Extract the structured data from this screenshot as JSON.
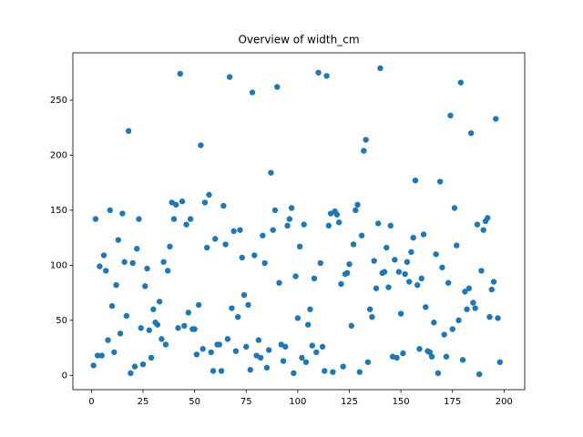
{
  "chart_data": {
    "type": "scatter",
    "title": "Overview of width_cm",
    "color": "#1f77b4",
    "xlim": [
      -9,
      210
    ],
    "ylim": [
      -13,
      293
    ],
    "xticks": [
      0,
      25,
      50,
      75,
      100,
      125,
      150,
      175,
      200
    ],
    "yticks": [
      0,
      50,
      100,
      150,
      200,
      250
    ],
    "x": [
      1,
      2,
      3,
      4,
      5,
      6,
      7,
      8,
      9,
      10,
      11,
      12,
      13,
      14,
      15,
      16,
      17,
      18,
      19,
      20,
      21,
      22,
      23,
      24,
      25,
      26,
      27,
      28,
      29,
      30,
      31,
      32,
      33,
      34,
      35,
      36,
      37,
      38,
      39,
      40,
      41,
      42,
      43,
      44,
      45,
      46,
      47,
      48,
      49,
      50,
      51,
      52,
      53,
      54,
      55,
      56,
      57,
      58,
      59,
      60,
      61,
      62,
      63,
      64,
      65,
      66,
      67,
      68,
      69,
      70,
      71,
      72,
      73,
      74,
      75,
      76,
      77,
      78,
      79,
      80,
      81,
      82,
      83,
      84,
      85,
      86,
      87,
      88,
      89,
      90,
      91,
      92,
      93,
      94,
      95,
      96,
      97,
      98,
      99,
      100,
      101,
      102,
      103,
      104,
      105,
      106,
      107,
      108,
      109,
      110,
      111,
      112,
      113,
      114,
      115,
      116,
      117,
      118,
      119,
      120,
      121,
      122,
      123,
      124,
      125,
      126,
      127,
      128,
      129,
      130,
      131,
      132,
      133,
      134,
      135,
      136,
      137,
      138,
      139,
      140,
      141,
      142,
      143,
      144,
      145,
      146,
      147,
      148,
      149,
      150,
      151,
      152,
      153,
      154,
      155,
      156,
      157,
      158,
      159,
      160,
      161,
      162,
      163,
      164,
      165,
      166,
      167,
      168,
      169,
      170,
      171,
      172,
      173,
      174,
      175,
      176,
      177,
      178,
      179,
      180,
      181,
      182,
      183,
      184,
      185,
      186,
      187,
      188,
      189,
      190,
      191,
      192,
      193,
      194,
      195,
      196,
      197,
      198
    ],
    "values": [
      9,
      142,
      18,
      99,
      18,
      109,
      95,
      32,
      150,
      63,
      21,
      82,
      123,
      38,
      147,
      103,
      54,
      222,
      2,
      102,
      8,
      115,
      142,
      43,
      10,
      81,
      97,
      41,
      16,
      60,
      48,
      46,
      67,
      33,
      103,
      28,
      95,
      117,
      157,
      142,
      155,
      43,
      274,
      158,
      45,
      137,
      57,
      142,
      42,
      42,
      19,
      64,
      209,
      24,
      157,
      116,
      164,
      21,
      4,
      124,
      28,
      28,
      4,
      154,
      119,
      33,
      271,
      61,
      131,
      22,
      53,
      132,
      107,
      73,
      26,
      64,
      5,
      257,
      109,
      18,
      32,
      16,
      127,
      102,
      7,
      23,
      184,
      132,
      150,
      262,
      84,
      28,
      13,
      26,
      136,
      142,
      152,
      2,
      90,
      52,
      117,
      16,
      137,
      12,
      46,
      60,
      27,
      88,
      21,
      275,
      102,
      26,
      4,
      272,
      136,
      147,
      3,
      149,
      146,
      139,
      83,
      8,
      92,
      93,
      101,
      45,
      119,
      150,
      155,
      3,
      127,
      204,
      214,
      12,
      60,
      53,
      104,
      79,
      138,
      279,
      93,
      94,
      116,
      80,
      136,
      17,
      105,
      16,
      94,
      56,
      20,
      92,
      103,
      85,
      112,
      125,
      177,
      82,
      24,
      88,
      128,
      62,
      22,
      21,
      17,
      48,
      110,
      2,
      176,
      98,
      37,
      17,
      84,
      236,
      42,
      152,
      118,
      50,
      266,
      14,
      76,
      60,
      79,
      220,
      66,
      61,
      137,
      1,
      95,
      132,
      140,
      143,
      53,
      78,
      85,
      233,
      52,
      12
    ]
  }
}
